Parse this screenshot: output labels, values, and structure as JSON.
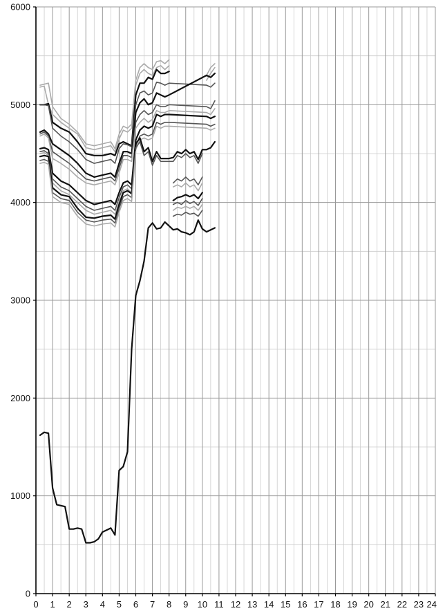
{
  "chart_data": {
    "type": "line",
    "title": "",
    "xlabel": "",
    "ylabel": "",
    "xlim": [
      0,
      24
    ],
    "ylim": [
      0,
      6000
    ],
    "grid": true,
    "x_ticks": [
      "0",
      "1",
      "2",
      "3",
      "4",
      "5",
      "6",
      "7",
      "8",
      "9",
      "10",
      "11",
      "12",
      "13",
      "14",
      "15",
      "16",
      "17",
      "18",
      "19",
      "20",
      "21",
      "22",
      "23",
      "24"
    ],
    "y_ticks": [
      "0",
      "1000",
      "2000",
      "3000",
      "4000",
      "5000",
      "6000"
    ],
    "colors": {
      "axis": "#000000",
      "grid_major": "#999999",
      "grid_minor": "#cccccc",
      "dark": "#111111",
      "mid": "#555555",
      "light": "#aaaaaa"
    },
    "series": [
      {
        "shade": "light",
        "x": [
          0.25,
          0.5,
          0.75,
          1,
          1.5,
          2,
          2.5,
          3,
          3.5,
          4,
          4.5,
          4.75,
          5,
          5.25,
          5.5,
          5.75,
          6,
          6.25,
          6.5,
          6.75,
          7,
          7.25,
          7.5,
          7.75,
          8,
          8.25,
          8.5,
          8.75,
          9,
          9.25,
          9.5,
          9.75,
          10,
          10.25,
          10.5,
          10.75
        ],
        "y": [
          5200,
          5210,
          5220,
          4980,
          4860,
          4800,
          4720,
          4600,
          4580,
          4600,
          4620,
          4550,
          4700,
          4780,
          4760,
          4800,
          5250,
          5380,
          5420,
          5380,
          5360,
          5440,
          5450,
          5420,
          5460,
          null,
          null,
          null,
          null,
          null,
          null,
          null,
          null,
          5300,
          5380,
          5420
        ]
      },
      {
        "shade": "light",
        "x": [
          0.25,
          0.5,
          0.75,
          1,
          1.5,
          2,
          2.5,
          3,
          3.5,
          4,
          4.5,
          4.75,
          5,
          5.25,
          5.5,
          5.75,
          6,
          6.25,
          6.5,
          6.75,
          7,
          7.25,
          7.5,
          7.75,
          8,
          8.25,
          8.5,
          8.75,
          9,
          9.25,
          9.5,
          9.75,
          10,
          10.25,
          10.5,
          10.75
        ],
        "y": [
          5180,
          5190,
          5000,
          4900,
          4820,
          4760,
          4700,
          4560,
          4540,
          4560,
          4580,
          4520,
          4650,
          4740,
          4720,
          4760,
          5200,
          5320,
          5360,
          5320,
          5300,
          5380,
          5400,
          5360,
          5400,
          null,
          null,
          null,
          null,
          null,
          null,
          null,
          null,
          5250,
          5320,
          5380
        ]
      },
      {
        "shade": "dark",
        "x": [
          0.25,
          0.5,
          0.75,
          1,
          1.5,
          2,
          2.5,
          3,
          3.5,
          4,
          4.5,
          4.75,
          5,
          5.25,
          5.5,
          5.75,
          6,
          6.25,
          6.5,
          6.75,
          7,
          7.25,
          7.5,
          7.75,
          8
        ],
        "y": [
          5000,
          5000,
          5010,
          4820,
          4760,
          4720,
          4620,
          4500,
          4480,
          4480,
          4500,
          4480,
          4600,
          4620,
          4600,
          4580,
          5100,
          5220,
          5220,
          5280,
          5260,
          5360,
          5320,
          5320,
          5340
        ]
      },
      {
        "shade": "mid",
        "x": [
          0.25,
          0.5,
          0.75,
          1,
          1.5,
          2,
          2.5,
          3,
          3.5,
          4,
          4.5,
          4.75,
          5,
          5.25,
          5.5,
          5.75,
          6,
          6.25,
          6.5,
          6.75,
          7,
          7.25,
          7.5,
          7.75,
          8,
          10.25,
          10.5,
          10.75
        ],
        "y": [
          5000,
          5000,
          4990,
          4760,
          4680,
          4620,
          4540,
          4440,
          4400,
          4420,
          4440,
          4400,
          4550,
          4600,
          4590,
          4570,
          5000,
          5120,
          5140,
          5100,
          5120,
          5230,
          5220,
          5200,
          5220,
          5200,
          5180,
          5220
        ]
      },
      {
        "shade": "dark",
        "x": [
          0.25,
          0.5,
          0.75,
          1,
          1.5,
          2,
          2.5,
          3,
          3.5,
          4,
          4.5,
          4.75,
          5,
          5.25,
          5.5,
          5.75,
          6,
          6.25,
          6.5,
          6.75,
          7,
          7.25,
          7.5,
          7.75,
          8,
          10.25,
          10.5,
          10.75
        ],
        "y": [
          4720,
          4740,
          4700,
          4600,
          4540,
          4480,
          4400,
          4300,
          4260,
          4280,
          4300,
          4260,
          4400,
          4520,
          4520,
          4500,
          4920,
          5020,
          5060,
          5000,
          5020,
          5120,
          5100,
          5080,
          5100,
          5300,
          5280,
          5320
        ]
      },
      {
        "shade": "mid",
        "x": [
          0.25,
          0.5,
          0.75,
          1,
          1.5,
          2,
          2.5,
          3,
          3.5,
          4,
          4.5,
          4.75,
          5,
          5.25,
          5.5,
          5.75,
          6,
          6.25,
          6.5,
          6.75,
          7,
          7.25,
          7.5,
          7.75,
          8,
          10.25,
          10.5,
          10.75
        ],
        "y": [
          4700,
          4720,
          4680,
          4520,
          4460,
          4400,
          4320,
          4240,
          4220,
          4240,
          4260,
          4220,
          4350,
          4480,
          4480,
          4460,
          4820,
          4900,
          4940,
          4900,
          4920,
          5000,
          4980,
          4980,
          5000,
          4980,
          4960,
          5040
        ]
      },
      {
        "shade": "light",
        "x": [
          0.25,
          0.5,
          0.75,
          1,
          1.5,
          2,
          2.5,
          3,
          3.5,
          4,
          4.5,
          4.75,
          5,
          5.25,
          5.5,
          5.75,
          6,
          6.25,
          6.5,
          6.75,
          7,
          7.25,
          7.5,
          7.75,
          8,
          10.25,
          10.5,
          10.75
        ],
        "y": [
          4680,
          4700,
          4660,
          4450,
          4400,
          4340,
          4260,
          4200,
          4180,
          4200,
          4220,
          4180,
          4300,
          4440,
          4440,
          4420,
          4760,
          4820,
          4860,
          4820,
          4850,
          4940,
          4920,
          4920,
          4940,
          4920,
          4900,
          4960
        ]
      },
      {
        "shade": "dark",
        "x": [
          0.25,
          0.5,
          0.75,
          1,
          1.5,
          2,
          2.5,
          3,
          3.5,
          4,
          4.5,
          4.75,
          5,
          5.25,
          5.5,
          5.75,
          6,
          6.25,
          6.5,
          6.75,
          7,
          7.25,
          7.5,
          7.75,
          8,
          10.25,
          10.5,
          10.75
        ],
        "y": [
          4550,
          4560,
          4540,
          4300,
          4220,
          4180,
          4100,
          4020,
          3980,
          4000,
          4020,
          3980,
          4100,
          4200,
          4220,
          4180,
          4640,
          4740,
          4780,
          4760,
          4780,
          4900,
          4880,
          4900,
          4900,
          4880,
          4860,
          4880
        ]
      },
      {
        "shade": "mid",
        "x": [
          0.25,
          0.5,
          0.75,
          1,
          1.5,
          2,
          2.5,
          3,
          3.5,
          4,
          4.5,
          4.75,
          5,
          5.25,
          5.5,
          5.75,
          6,
          6.25,
          6.5,
          6.75,
          7,
          7.25,
          7.5,
          7.75,
          8,
          10.25,
          10.5,
          10.75
        ],
        "y": [
          4520,
          4530,
          4500,
          4240,
          4160,
          4120,
          4040,
          3960,
          3920,
          3940,
          3960,
          3920,
          4050,
          4160,
          4180,
          4140,
          4580,
          4680,
          4700,
          4680,
          4700,
          4820,
          4800,
          4820,
          4820,
          4800,
          4780,
          4800
        ]
      },
      {
        "shade": "light",
        "x": [
          0.25,
          0.5,
          0.75,
          1,
          1.5,
          2,
          2.5,
          3,
          3.5,
          4,
          4.5,
          4.75,
          5,
          5.25,
          5.5,
          5.75,
          6,
          6.25,
          6.5,
          6.75,
          7,
          7.25,
          7.5,
          7.75,
          8,
          10.25,
          10.5,
          10.75
        ],
        "y": [
          4500,
          4510,
          4480,
          4200,
          4120,
          4080,
          4000,
          3920,
          3880,
          3900,
          3920,
          3880,
          4000,
          4120,
          4140,
          4100,
          4540,
          4640,
          4660,
          4640,
          4660,
          4780,
          4760,
          4780,
          4780,
          4760,
          4740,
          4760
        ]
      },
      {
        "shade": "dark",
        "x": [
          0.25,
          0.5,
          0.75,
          1,
          1.5,
          2,
          2.5,
          3,
          3.5,
          4,
          4.5,
          4.75,
          5,
          5.25,
          5.5,
          5.75,
          6,
          6.25,
          6.5,
          6.75,
          7,
          7.25,
          7.5,
          7.75,
          8,
          8.25,
          8.5,
          8.75,
          9,
          9.25,
          9.5,
          9.75,
          10,
          10.25,
          10.5,
          10.75
        ],
        "y": [
          4470,
          4480,
          4470,
          4150,
          4080,
          4060,
          3940,
          3850,
          3840,
          3860,
          3870,
          3830,
          3980,
          4100,
          4120,
          4090,
          4600,
          4660,
          4520,
          4560,
          4420,
          4520,
          4450,
          4450,
          4450,
          4460,
          4520,
          4500,
          4540,
          4500,
          4520,
          4440,
          4540,
          4540,
          4560,
          4620
        ]
      },
      {
        "shade": "mid",
        "x": [
          0.25,
          0.5,
          0.75,
          1,
          1.5,
          2,
          2.5,
          3,
          3.5,
          4,
          4.5,
          4.75,
          5,
          5.25,
          5.5,
          5.75,
          6,
          6.25,
          6.5,
          6.75,
          7,
          7.25,
          7.5,
          7.75,
          8,
          8.25,
          8.5,
          8.75,
          9,
          9.25,
          9.5,
          9.75,
          10
        ],
        "y": [
          4430,
          4440,
          4420,
          4100,
          4040,
          4020,
          3900,
          3820,
          3800,
          3820,
          3830,
          3790,
          3940,
          4060,
          4080,
          4050,
          4560,
          4620,
          4480,
          4520,
          4380,
          4480,
          4420,
          4420,
          4420,
          4420,
          4480,
          4460,
          4500,
          4460,
          4480,
          4400,
          4500
        ]
      },
      {
        "shade": "light",
        "x": [
          0.25,
          0.5,
          0.75,
          1,
          1.5,
          2,
          2.5,
          3,
          3.5,
          4,
          4.5,
          4.75,
          5,
          5.25,
          5.5,
          5.75,
          6
        ],
        "y": [
          4400,
          4410,
          4390,
          4060,
          4000,
          3980,
          3860,
          3780,
          3760,
          3780,
          3790,
          3750,
          3900,
          4020,
          4040,
          4010,
          4520
        ]
      },
      {
        "shade": "mid",
        "x": [
          8.25,
          8.5,
          8.75,
          9,
          9.25,
          9.5,
          9.75,
          10
        ],
        "y": [
          4200,
          4240,
          4220,
          4260,
          4220,
          4240,
          4180,
          4260
        ]
      },
      {
        "shade": "light",
        "x": [
          8.25,
          8.5,
          8.75,
          9,
          9.25,
          9.5,
          9.75,
          10
        ],
        "y": [
          4160,
          4180,
          4160,
          4200,
          4160,
          4180,
          4120,
          4200
        ]
      },
      {
        "shade": "dark",
        "x": [
          8.25,
          8.5,
          8.75,
          9,
          9.25,
          9.5,
          9.75,
          10
        ],
        "y": [
          4020,
          4050,
          4060,
          4080,
          4060,
          4080,
          4040,
          4100
        ]
      },
      {
        "shade": "mid",
        "x": [
          8.25,
          8.5,
          8.75,
          9,
          9.25,
          9.5,
          9.75,
          10
        ],
        "y": [
          3980,
          4000,
          3980,
          4020,
          3990,
          4010,
          3970,
          4040
        ]
      },
      {
        "shade": "light",
        "x": [
          8.25,
          8.5,
          8.75,
          9,
          9.25,
          9.5,
          9.75,
          10
        ],
        "y": [
          3920,
          3950,
          3940,
          3960,
          3940,
          3960,
          3920,
          3980
        ]
      },
      {
        "shade": "mid",
        "x": [
          8.25,
          8.5,
          8.75,
          9,
          9.25,
          9.5,
          9.75,
          10
        ],
        "y": [
          3860,
          3880,
          3870,
          3900,
          3880,
          3890,
          3860,
          3920
        ]
      },
      {
        "shade": "dark",
        "x": [
          0.25,
          0.5,
          0.75,
          1,
          1.25,
          1.5,
          1.75,
          2,
          2.25,
          2.5,
          2.75,
          3,
          3.25,
          3.5,
          3.75,
          4,
          4.25,
          4.5,
          4.75,
          5,
          5.25,
          5.5,
          5.75,
          6,
          6.25,
          6.5,
          6.75,
          7,
          7.25,
          7.5,
          7.75,
          8,
          8.25,
          8.5,
          8.75,
          9,
          9.25,
          9.5,
          9.75,
          10,
          10.25,
          10.5,
          10.75
        ],
        "y": [
          1620,
          1650,
          1640,
          1080,
          910,
          900,
          890,
          660,
          660,
          670,
          660,
          520,
          520,
          530,
          560,
          630,
          650,
          670,
          600,
          1260,
          1300,
          1450,
          2500,
          3050,
          3200,
          3400,
          3740,
          3790,
          3730,
          3740,
          3800,
          3760,
          3720,
          3730,
          3700,
          3690,
          3670,
          3700,
          3820,
          3730,
          3700,
          3720,
          3740
        ]
      }
    ]
  }
}
